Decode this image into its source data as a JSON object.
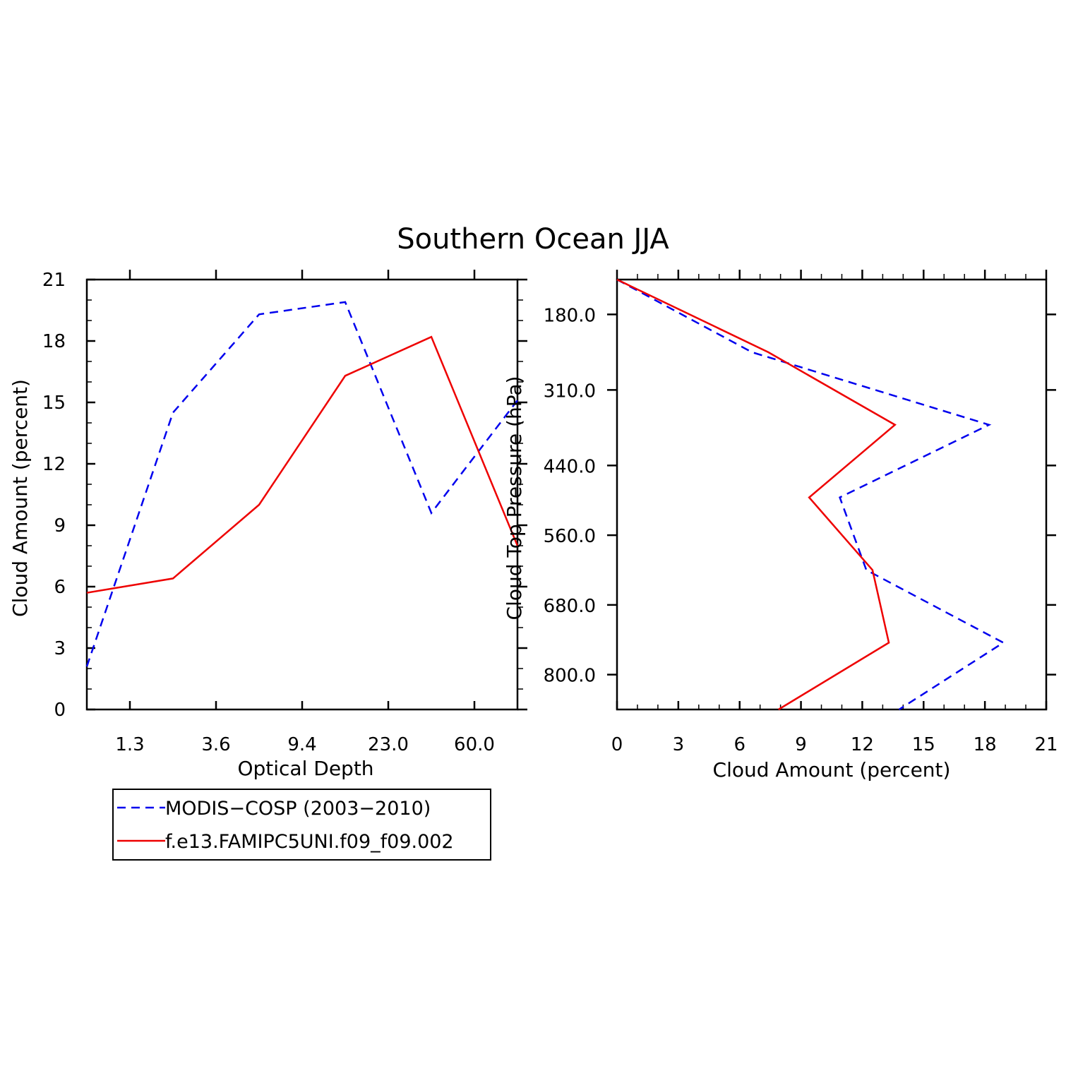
{
  "title": "Southern Ocean JJA",
  "legend": [
    {
      "label": "MODIS−COSP (2003−2010)",
      "color": "#0000ee",
      "dash": "dashed"
    },
    {
      "label": "f.e13.FAMIPC5UNI.f09_f09.002",
      "color": "#ee0000",
      "dash": "solid"
    }
  ],
  "chart_data": [
    {
      "type": "line",
      "name": "optical-depth-histogram",
      "xlabel": "Optical Depth",
      "ylabel": "Cloud Amount (percent)",
      "x_ticks": [
        "1.3",
        "3.6",
        "9.4",
        "23.0",
        "60.0"
      ],
      "x_positions": [
        0,
        1,
        2,
        3,
        4,
        5
      ],
      "xlim": [
        0,
        5
      ],
      "y_ticks": [
        "0",
        "3",
        "6",
        "9",
        "12",
        "15",
        "18",
        "21"
      ],
      "ylim": [
        0,
        21
      ],
      "series": [
        {
          "name": "MODIS−COSP (2003−2010)",
          "values": [
            2.1,
            14.5,
            19.3,
            19.9,
            9.6,
            15.1
          ]
        },
        {
          "name": "f.e13.FAMIPC5UNI.f09_f09.002",
          "values": [
            5.7,
            6.4,
            10.0,
            16.3,
            18.2,
            8.0
          ]
        }
      ]
    },
    {
      "type": "line",
      "name": "cloud-top-pressure-profile",
      "xlabel": "Cloud Amount (percent)",
      "ylabel": "Cloud Top Pressure (hPa)",
      "x_ticks": [
        "0",
        "3",
        "6",
        "9",
        "12",
        "15",
        "18",
        "21"
      ],
      "xlim": [
        0,
        21
      ],
      "y_ticks": [
        "180.0",
        "310.0",
        "440.0",
        "560.0",
        "680.0",
        "800.0"
      ],
      "ylim": [
        120,
        860
      ],
      "series": [
        {
          "name": "MODIS−COSP (2003−2010)",
          "pressure": [
            120,
            245,
            370,
            495,
            620,
            745,
            860
          ],
          "values": [
            0.0,
            6.6,
            18.2,
            10.9,
            12.2,
            18.9,
            13.8
          ]
        },
        {
          "name": "f.e13.FAMIPC5UNI.f09_f09.002",
          "pressure": [
            120,
            245,
            370,
            495,
            620,
            745,
            860
          ],
          "values": [
            0.0,
            7.4,
            13.6,
            9.4,
            12.5,
            13.3,
            7.9
          ]
        }
      ]
    }
  ]
}
